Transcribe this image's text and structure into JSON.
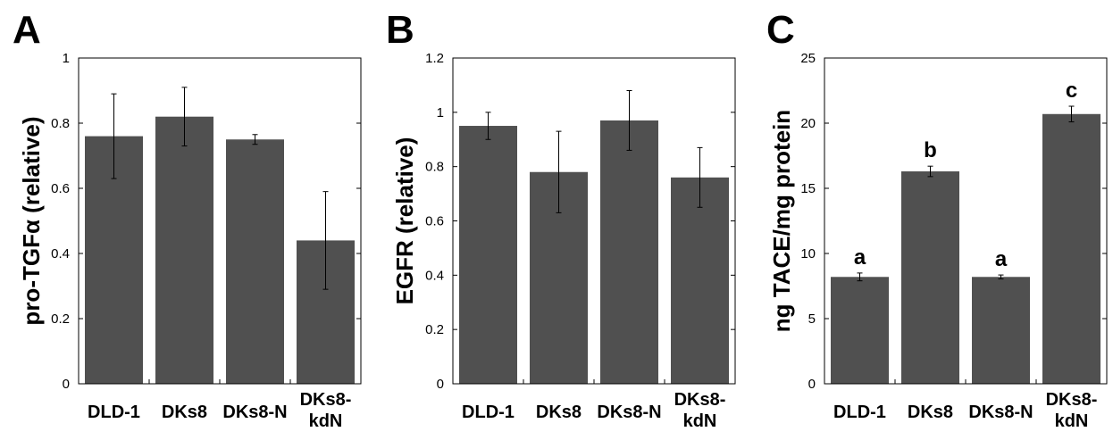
{
  "chart_data": [
    {
      "type": "bar",
      "panel": "A",
      "ylabel": "pro-TGFα (relative)",
      "ylim": [
        0,
        1
      ],
      "yticks": [
        "0",
        "0.2",
        "0.4",
        "0.6",
        "0.8",
        "1"
      ],
      "categories": [
        [
          "DLD-1"
        ],
        [
          "DKs8"
        ],
        [
          "DKs8-N"
        ],
        [
          "DKs8-",
          "kdN"
        ]
      ],
      "values": [
        0.76,
        0.82,
        0.75,
        0.44
      ],
      "errors": [
        0.13,
        0.09,
        0.015,
        0.15
      ],
      "annotations": [],
      "bar_color": "#505050",
      "grid": false
    },
    {
      "type": "bar",
      "panel": "B",
      "ylabel": "EGFR (relative)",
      "ylim": [
        0,
        1.2
      ],
      "yticks": [
        "0",
        "0.2",
        "0.4",
        "0.6",
        "0.8",
        "1",
        "1.2"
      ],
      "categories": [
        [
          "DLD-1"
        ],
        [
          "DKs8"
        ],
        [
          "DKs8-N"
        ],
        [
          "DKs8-",
          "kdN"
        ]
      ],
      "values": [
        0.95,
        0.78,
        0.97,
        0.76
      ],
      "errors": [
        0.05,
        0.15,
        0.11,
        0.11
      ],
      "annotations": [],
      "bar_color": "#505050",
      "grid": false
    },
    {
      "type": "bar",
      "panel": "C",
      "ylabel": "ng TACE/mg protein",
      "ylim": [
        0,
        25
      ],
      "yticks": [
        "0",
        "5",
        "10",
        "15",
        "20",
        "25"
      ],
      "categories": [
        [
          "DLD-1"
        ],
        [
          "DKs8"
        ],
        [
          "DKs8-N"
        ],
        [
          "DKs8-",
          "kdN"
        ]
      ],
      "values": [
        8.2,
        16.3,
        8.2,
        20.7
      ],
      "errors": [
        0.3,
        0.4,
        0.15,
        0.6
      ],
      "annotations": [
        "a",
        "b",
        "a",
        "c"
      ],
      "bar_color": "#505050",
      "grid": false
    }
  ]
}
